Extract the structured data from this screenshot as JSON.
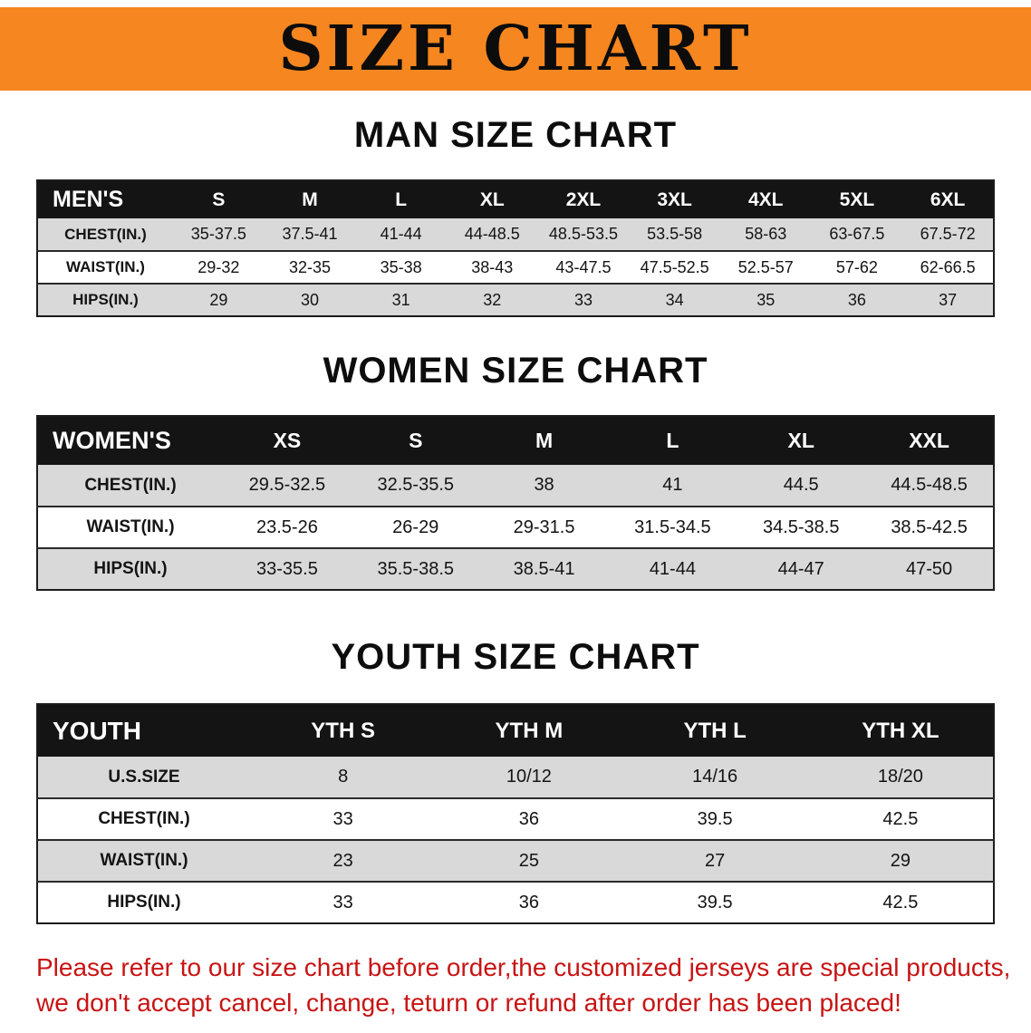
{
  "banner": {
    "title": "SIZE CHART"
  },
  "sections": {
    "men": {
      "heading": "MAN SIZE CHART",
      "label": "MEN'S",
      "columns": [
        "S",
        "M",
        "L",
        "XL",
        "2XL",
        "3XL",
        "4XL",
        "5XL",
        "6XL"
      ],
      "rows": [
        {
          "label": "CHEST(IN.)",
          "values": [
            "35-37.5",
            "37.5-41",
            "41-44",
            "44-48.5",
            "48.5-53.5",
            "53.5-58",
            "58-63",
            "63-67.5",
            "67.5-72"
          ]
        },
        {
          "label": "WAIST(IN.)",
          "values": [
            "29-32",
            "32-35",
            "35-38",
            "38-43",
            "43-47.5",
            "47.5-52.5",
            "52.5-57",
            "57-62",
            "62-66.5"
          ]
        },
        {
          "label": "HIPS(IN.)",
          "values": [
            "29",
            "30",
            "31",
            "32",
            "33",
            "34",
            "35",
            "36",
            "37"
          ]
        }
      ]
    },
    "women": {
      "heading": "WOMEN SIZE CHART",
      "label": "WOMEN'S",
      "columns": [
        "XS",
        "S",
        "M",
        "L",
        "XL",
        "XXL"
      ],
      "rows": [
        {
          "label": "CHEST(IN.)",
          "values": [
            "29.5-32.5",
            "32.5-35.5",
            "38",
            "41",
            "44.5",
            "44.5-48.5"
          ]
        },
        {
          "label": "WAIST(IN.)",
          "values": [
            "23.5-26",
            "26-29",
            "29-31.5",
            "31.5-34.5",
            "34.5-38.5",
            "38.5-42.5"
          ]
        },
        {
          "label": "HIPS(IN.)",
          "values": [
            "33-35.5",
            "35.5-38.5",
            "38.5-41",
            "41-44",
            "44-47",
            "47-50"
          ]
        }
      ]
    },
    "youth": {
      "heading": "YOUTH SIZE CHART",
      "label": "YOUTH",
      "columns": [
        "YTH S",
        "YTH M",
        "YTH L",
        "YTH XL"
      ],
      "rows": [
        {
          "label": "U.S.SIZE",
          "values": [
            "8",
            "10/12",
            "14/16",
            "18/20"
          ]
        },
        {
          "label": "CHEST(IN.)",
          "values": [
            "33",
            "36",
            "39.5",
            "42.5"
          ]
        },
        {
          "label": "WAIST(IN.)",
          "values": [
            "23",
            "25",
            "27",
            "29"
          ]
        },
        {
          "label": "HIPS(IN.)",
          "values": [
            "33",
            "36",
            "39.5",
            "42.5"
          ]
        }
      ]
    }
  },
  "footer": {
    "line1": "Please refer to our size chart before order,the customized jerseys are special products,",
    "line2": "we don't accept cancel, change, teturn or refund after order has been placed!"
  },
  "colors": {
    "banner_orange": "#f6861f",
    "header_black": "#141414",
    "row_gray": "#d9d9d9",
    "footer_red": "#c81414"
  }
}
